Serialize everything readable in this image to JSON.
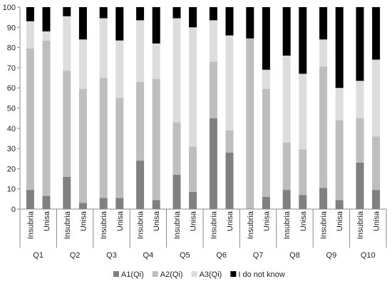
{
  "chart_data": {
    "type": "bar",
    "stacked": true,
    "orientation": "vertical",
    "ylim": [
      0,
      100
    ],
    "yticks": [
      0,
      10,
      20,
      30,
      40,
      50,
      60,
      70,
      80,
      90,
      100
    ],
    "grid": false,
    "legend_position": "bottom",
    "title": "",
    "xlabel": "",
    "ylabel": "",
    "groups": [
      "Q1",
      "Q2",
      "Q3",
      "Q4",
      "Q5",
      "Q6",
      "Q7",
      "Q8",
      "Q9",
      "Q10"
    ],
    "sub_categories": [
      "Insubria",
      "Unisa"
    ],
    "categories": [
      "Q1 Insubria",
      "Q1 Unisa",
      "Q2 Insubria",
      "Q2 Unisa",
      "Q3 Insubria",
      "Q3 Unisa",
      "Q4 Insubria",
      "Q4 Unisa",
      "Q5 Insubria",
      "Q5 Unisa",
      "Q6 Insubria",
      "Q6 Unisa",
      "Q7 Insubria",
      "Q7 Unisa",
      "Q8 Insubria",
      "Q8 Unisa",
      "Q9 Insubria",
      "Q9 Unisa",
      "Q10 Insubria",
      "Q10 Unisa"
    ],
    "series": [
      {
        "name": "A1(Qi)",
        "color": "#808080",
        "values": [
          9.5,
          6.5,
          16,
          3,
          5.5,
          5.5,
          24,
          4.5,
          17,
          8.5,
          45,
          28,
          0,
          6,
          9.5,
          7,
          10.5,
          4.5,
          23,
          9.5
        ]
      },
      {
        "name": "A2(Qi)",
        "color": "#bebebe",
        "values": [
          70,
          77,
          52.5,
          56.5,
          59.5,
          49.5,
          39,
          60,
          26,
          22.5,
          28,
          11,
          84.5,
          53.5,
          23.5,
          22.5,
          60,
          39.5,
          22,
          26.5
        ]
      },
      {
        "name": "A3(Qi)",
        "color": "#dddddd",
        "values": [
          13.5,
          4.5,
          27,
          24.5,
          29.5,
          28.5,
          30.5,
          17.5,
          51.5,
          59,
          20.5,
          47,
          0,
          9.5,
          43,
          37.5,
          13.5,
          16,
          18.5,
          38
        ]
      },
      {
        "name": "I do not know",
        "color": "#000000",
        "values": [
          7,
          12,
          4.5,
          16,
          5.5,
          16.5,
          6.5,
          18,
          5.5,
          10,
          6.5,
          14,
          15.5,
          31,
          24,
          33,
          16,
          40,
          36.5,
          26
        ]
      }
    ]
  }
}
